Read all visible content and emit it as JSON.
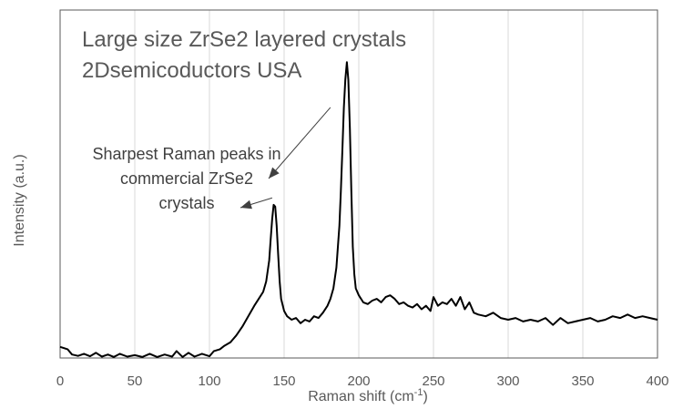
{
  "chart_data": {
    "type": "line",
    "title": [
      "Large size ZrSe2 layered crystals",
      "2Dsemicoductors USA"
    ],
    "xlabel": "Raman shift (cm-1)",
    "xlabel_parts": {
      "text": "Raman shift (cm",
      "superscript": "-1",
      "close": ")"
    },
    "ylabel": "Intensity (a.u.)",
    "xlim": [
      0,
      400
    ],
    "ylim": [
      0,
      100
    ],
    "y_ticks_shown": false,
    "x_ticks": [
      0,
      50,
      100,
      150,
      200,
      250,
      300,
      350,
      400
    ],
    "grid": "vertical",
    "legend": "none",
    "annotation": {
      "lines": [
        "Sharpest Raman peaks in",
        "commercial ZrSe2",
        "crystals"
      ],
      "arrow_targets": [
        [
          142,
          46
        ],
        [
          181,
          72
        ]
      ]
    },
    "series": [
      {
        "color": "#000000",
        "x": [
          0,
          5,
          8,
          12,
          16,
          20,
          24,
          28,
          32,
          36,
          40,
          45,
          50,
          55,
          60,
          65,
          70,
          75,
          78,
          82,
          86,
          90,
          95,
          100,
          103,
          107,
          110,
          114,
          118,
          122,
          126,
          130,
          133,
          136,
          138,
          140,
          141,
          142,
          143,
          144,
          145,
          146,
          147,
          148,
          150,
          152,
          155,
          158,
          161,
          164,
          167,
          170,
          173,
          176,
          179,
          181,
          183,
          185,
          187,
          188,
          189,
          190,
          191,
          192,
          193,
          194,
          195,
          196,
          197,
          198,
          200,
          203,
          206,
          209,
          212,
          215,
          218,
          221,
          224,
          227,
          230,
          233,
          236,
          239,
          242,
          245,
          248,
          250,
          253,
          256,
          259,
          262,
          265,
          268,
          271,
          274,
          277,
          280,
          285,
          290,
          295,
          300,
          305,
          310,
          315,
          320,
          325,
          330,
          335,
          340,
          345,
          350,
          355,
          360,
          365,
          370,
          375,
          380,
          385,
          390,
          395,
          400
        ],
        "y": [
          3.2,
          2.5,
          1.0,
          0.6,
          1.2,
          0.5,
          1.5,
          0.4,
          1.0,
          0.3,
          1.2,
          0.4,
          0.8,
          0.3,
          1.2,
          0.3,
          1.0,
          0.4,
          2.0,
          0.3,
          1.5,
          0.4,
          1.2,
          0.5,
          2.0,
          2.5,
          3.5,
          4.5,
          6.5,
          9.0,
          12.0,
          15.0,
          17.0,
          19.0,
          22.0,
          28.0,
          34.0,
          40.0,
          44.0,
          43.5,
          38.0,
          30.0,
          22.0,
          17.0,
          13.5,
          12.0,
          11.0,
          11.5,
          10.0,
          11.0,
          10.5,
          12.0,
          11.5,
          13.0,
          15.0,
          17.0,
          20.0,
          26.0,
          38.0,
          48.0,
          60.0,
          72.0,
          80.0,
          85.0,
          80.0,
          66.0,
          48.0,
          32.0,
          24.0,
          20.0,
          18.0,
          16.0,
          15.5,
          16.5,
          17.0,
          16.0,
          17.5,
          18.0,
          17.0,
          15.5,
          16.0,
          15.0,
          14.5,
          15.5,
          14.0,
          15.0,
          13.5,
          17.5,
          15.0,
          16.0,
          15.5,
          17.0,
          15.0,
          17.5,
          14.0,
          16.0,
          13.0,
          12.5,
          12.0,
          13.0,
          11.5,
          11.0,
          11.5,
          10.5,
          11.0,
          10.5,
          11.5,
          9.5,
          11.5,
          10.0,
          10.5,
          11.0,
          11.5,
          10.5,
          11.0,
          12.0,
          11.5,
          12.5,
          11.5,
          12.0,
          11.5,
          11.0
        ]
      }
    ]
  }
}
